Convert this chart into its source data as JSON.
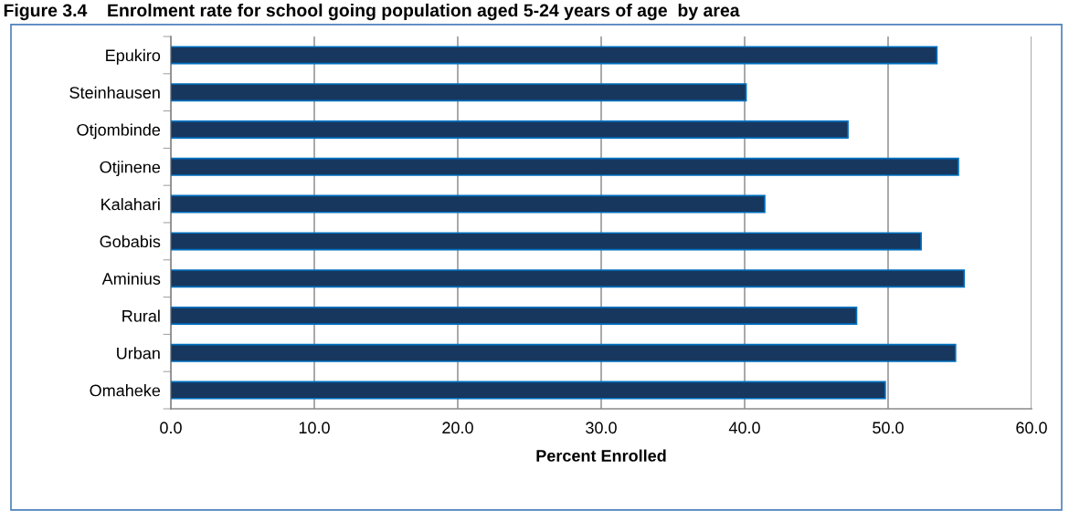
{
  "chart_data": {
    "type": "bar",
    "orientation": "horizontal",
    "title": "Figure 3.4    Enrolment rate for school going population aged 5-24 years of age  by area",
    "xlabel": "Percent Enrolled",
    "categories": [
      "Epukiro",
      "Steinhausen",
      "Otjombinde",
      "Otjinene",
      "Kalahari",
      "Gobabis",
      "Aminius",
      "Rural",
      "Urban",
      "Omaheke"
    ],
    "values": [
      53.4,
      40.1,
      47.2,
      54.9,
      41.4,
      52.3,
      55.3,
      47.8,
      54.7,
      49.8
    ],
    "color": "#17375e",
    "xlim": [
      0,
      60
    ],
    "xticks": [
      {
        "value": 0,
        "label": "0.0"
      },
      {
        "value": 10,
        "label": "10.0"
      },
      {
        "value": 20,
        "label": "20.0"
      },
      {
        "value": 30,
        "label": "30.0"
      },
      {
        "value": 40,
        "label": "40.0"
      },
      {
        "value": 50,
        "label": "50.0"
      },
      {
        "value": 60,
        "label": "60.0"
      }
    ],
    "grid": "x"
  }
}
